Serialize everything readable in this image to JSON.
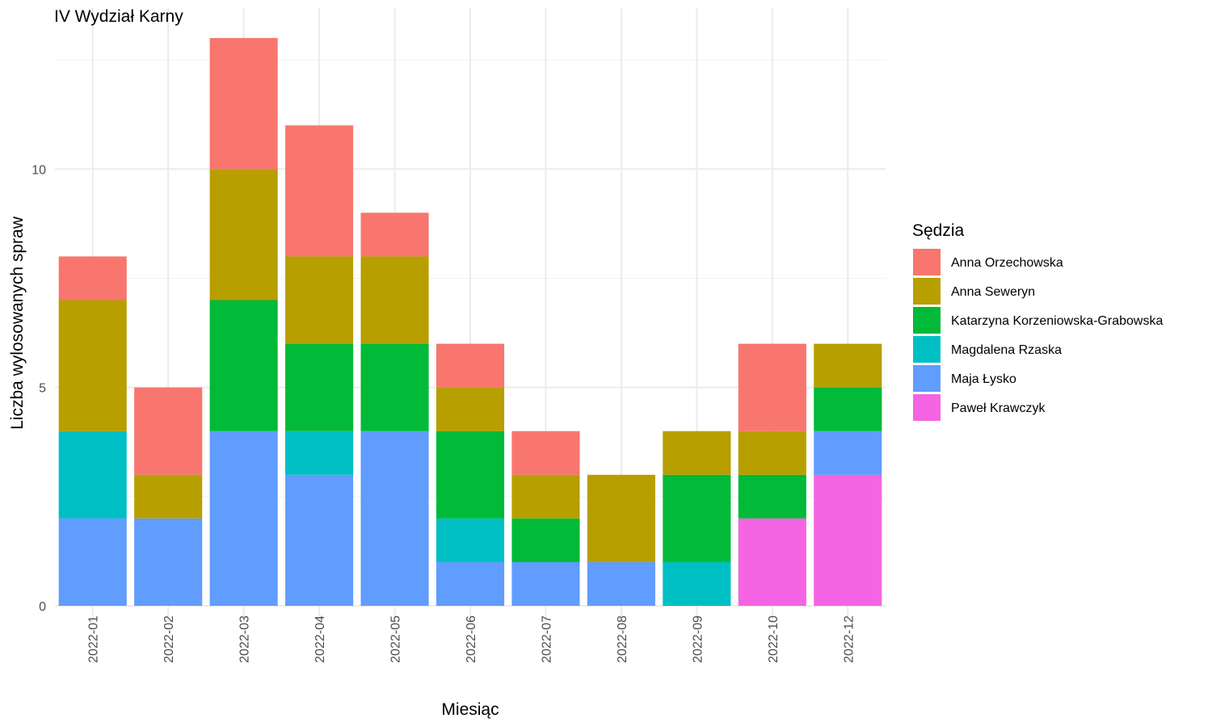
{
  "chart_data": {
    "type": "bar",
    "stacked": true,
    "title": "IV Wydział Karny",
    "xlabel": "Miesiąc",
    "ylabel": "Liczba wylosowanych spraw",
    "ylim": [
      0,
      13
    ],
    "yticks": [
      0,
      5,
      10
    ],
    "grid": true,
    "legend_title": "Sędzia",
    "legend_position": "right",
    "categories": [
      "2022-01",
      "2022-02",
      "2022-03",
      "2022-04",
      "2022-05",
      "2022-06",
      "2022-07",
      "2022-08",
      "2022-09",
      "2022-10",
      "2022-12"
    ],
    "series": [
      {
        "name": "Anna Orzechowska",
        "color": "#F8766D",
        "values": [
          1,
          2,
          3,
          3,
          1,
          1,
          1,
          0,
          0,
          2,
          0
        ]
      },
      {
        "name": "Anna Seweryn",
        "color": "#B79F00",
        "values": [
          3,
          1,
          3,
          2,
          2,
          1,
          1,
          2,
          1,
          1,
          1
        ]
      },
      {
        "name": "Katarzyna Korzeniowska-Grabowska",
        "color": "#00BA38",
        "values": [
          0,
          0,
          3,
          2,
          2,
          2,
          1,
          0,
          2,
          1,
          1
        ]
      },
      {
        "name": "Magdalena Rzaska",
        "color": "#00BFC4",
        "values": [
          2,
          0,
          0,
          1,
          0,
          1,
          0,
          0,
          1,
          0,
          0
        ]
      },
      {
        "name": "Maja Łysko",
        "color": "#619CFF",
        "values": [
          2,
          2,
          4,
          3,
          4,
          1,
          1,
          1,
          0,
          0,
          1
        ]
      },
      {
        "name": "Paweł Krawczyk",
        "color": "#F564E3",
        "values": [
          0,
          0,
          0,
          0,
          0,
          0,
          0,
          0,
          0,
          2,
          3
        ]
      }
    ]
  }
}
